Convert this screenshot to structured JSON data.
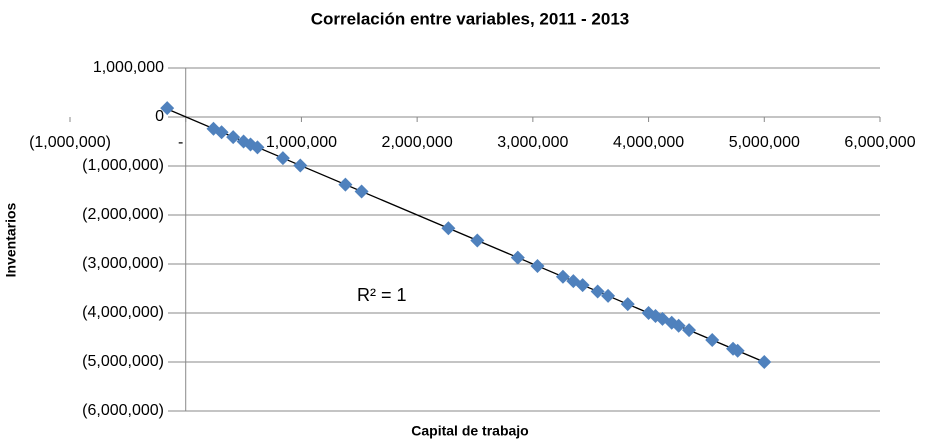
{
  "chart_data": {
    "type": "scatter",
    "title": "Correlación entre variables, 2011 - 2013",
    "x_label": "Capital de trabajo",
    "y_label": "Inventarios",
    "annotation": "R² = 1",
    "series": [
      {
        "color": "#4f81bd",
        "x": [
          -160000,
          240000,
          310000,
          410000,
          500000,
          560000,
          620000,
          840000,
          990000,
          1380000,
          1520000,
          2270000,
          2520000,
          2870000,
          3040000,
          3260000,
          3350000,
          3430000,
          3560000,
          3650000,
          3820000,
          4000000,
          4060000,
          4120000,
          4200000,
          4260000,
          4350000,
          4550000,
          4730000,
          4770000,
          5000000
        ],
        "values": [
          180000,
          -240000,
          -310000,
          -410000,
          -500000,
          -560000,
          -620000,
          -840000,
          -990000,
          -1380000,
          -1520000,
          -2270000,
          -2520000,
          -2870000,
          -3040000,
          -3260000,
          -3350000,
          -3430000,
          -3560000,
          -3650000,
          -3820000,
          -4000000,
          -4060000,
          -4120000,
          -4200000,
          -4260000,
          -4350000,
          -4550000,
          -4730000,
          -4770000,
          -5000000
        ]
      }
    ],
    "trendline": true,
    "xlim": [
      -1000000,
      6000000
    ],
    "xticks": [
      {
        "value": -1000000,
        "label": "(1,000,000)"
      },
      {
        "value": 0,
        "label": "-"
      },
      {
        "value": 1000000,
        "label": "1,000,000"
      },
      {
        "value": 2000000,
        "label": "2,000,000"
      },
      {
        "value": 3000000,
        "label": "3,000,000"
      },
      {
        "value": 4000000,
        "label": "4,000,000"
      },
      {
        "value": 5000000,
        "label": "5,000,000"
      },
      {
        "value": 6000000,
        "label": "6,000,000"
      }
    ],
    "ylim": [
      -6000000,
      1000000
    ],
    "yticks": [
      {
        "value": 1000000,
        "label": "1,000,000"
      },
      0,
      {
        "value": -1000000,
        "label": "(1,000,000)"
      },
      {
        "value": -2000000,
        "label": "(2,000,000)"
      },
      {
        "value": -3000000,
        "label": "(3,000,000)"
      },
      {
        "value": -4000000,
        "label": "(4,000,000)"
      },
      {
        "value": -5000000,
        "label": "(5,000,000)"
      },
      {
        "value": -6000000,
        "label": "(6,000,000)"
      }
    ],
    "grid": true
  }
}
